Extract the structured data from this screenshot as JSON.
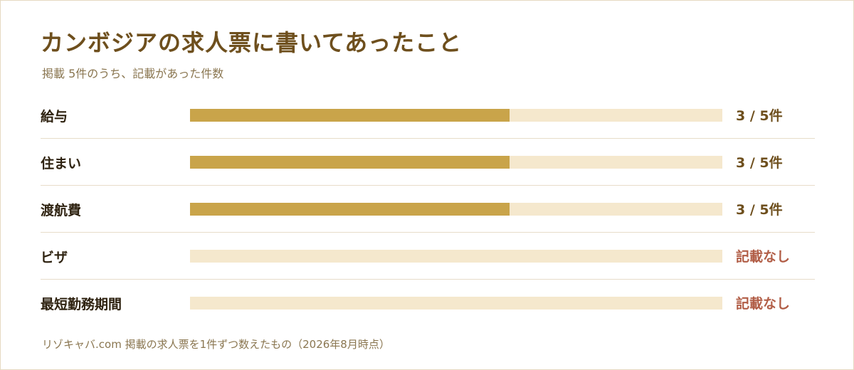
{
  "colors": {
    "bar_fill": "#c9a44a",
    "bar_track": "#f5e8cd",
    "value_text": "#6e4f1d",
    "none_text": "#b15d46",
    "title_text": "#6e4f1d"
  },
  "chart_data": {
    "type": "bar",
    "orientation": "horizontal",
    "title": "カンボジアの求人票に書いてあったこと",
    "subtitle": "掲載 5件のうち、記載があった件数",
    "total": 5,
    "xlim": [
      0,
      5
    ],
    "categories": [
      "給与",
      "住まい",
      "渡航費",
      "ビザ",
      "最短勤務期間"
    ],
    "values": [
      3,
      3,
      3,
      0,
      0
    ],
    "value_labels": [
      "3 / 5件",
      "3 / 5件",
      "3 / 5件",
      "記載なし",
      "記載なし"
    ],
    "grid": false,
    "legend": "none",
    "footnote": "リゾキャバ.com 掲載の求人票を1件ずつ数えたもの（2026年8月時点）"
  }
}
